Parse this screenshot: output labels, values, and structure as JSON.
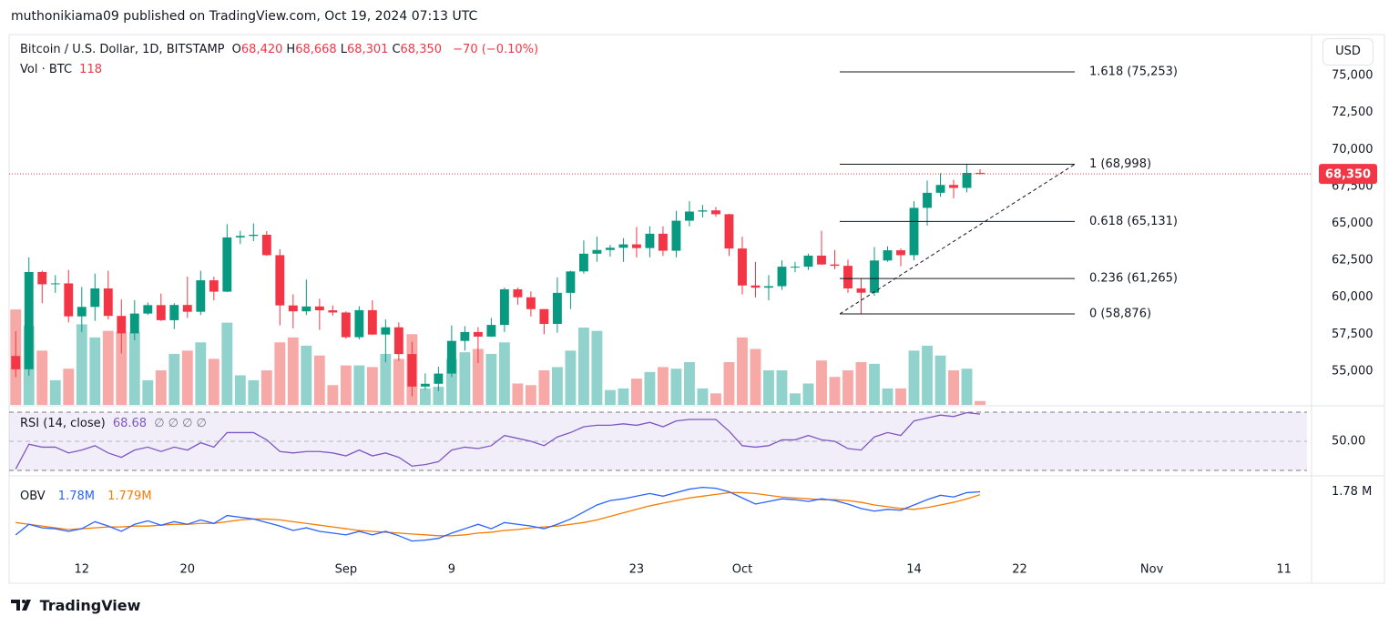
{
  "header": {
    "published": "muthonikiama09 published on TradingView.com, Oct 19, 2024 07:13 UTC"
  },
  "footer": {
    "brand": "TradingView"
  },
  "chart_data": {
    "type": "candlestick",
    "legend": {
      "symbol": "Bitcoin / U.S. Dollar, 1D, BITSTAMP",
      "ohlc_keys": [
        "O",
        "H",
        "L",
        "C"
      ],
      "ohlc_value_labels": [
        "68,420",
        "68,668",
        "68,301",
        "68,350"
      ],
      "change_label": "−70 (−0.10%)",
      "volume_name": "Vol · BTC",
      "volume_label": "118",
      "currency": "USD"
    },
    "x": [
      "2024-08-07",
      "2024-08-08",
      "2024-08-09",
      "2024-08-10",
      "2024-08-11",
      "2024-08-12",
      "2024-08-13",
      "2024-08-14",
      "2024-08-15",
      "2024-08-16",
      "2024-08-17",
      "2024-08-18",
      "2024-08-19",
      "2024-08-20",
      "2024-08-21",
      "2024-08-22",
      "2024-08-23",
      "2024-08-24",
      "2024-08-25",
      "2024-08-26",
      "2024-08-27",
      "2024-08-28",
      "2024-08-29",
      "2024-08-30",
      "2024-08-31",
      "2024-09-01",
      "2024-09-02",
      "2024-09-03",
      "2024-09-04",
      "2024-09-05",
      "2024-09-06",
      "2024-09-07",
      "2024-09-08",
      "2024-09-09",
      "2024-09-10",
      "2024-09-11",
      "2024-09-12",
      "2024-09-13",
      "2024-09-14",
      "2024-09-15",
      "2024-09-16",
      "2024-09-17",
      "2024-09-18",
      "2024-09-19",
      "2024-09-20",
      "2024-09-21",
      "2024-09-22",
      "2024-09-23",
      "2024-09-24",
      "2024-09-25",
      "2024-09-26",
      "2024-09-27",
      "2024-09-28",
      "2024-09-29",
      "2024-09-30",
      "2024-10-01",
      "2024-10-02",
      "2024-10-03",
      "2024-10-04",
      "2024-10-05",
      "2024-10-06",
      "2024-10-07",
      "2024-10-08",
      "2024-10-09",
      "2024-10-10",
      "2024-10-11",
      "2024-10-12",
      "2024-10-13",
      "2024-10-14",
      "2024-10-15",
      "2024-10-16",
      "2024-10-17",
      "2024-10-18",
      "2024-10-19"
    ],
    "open": [
      56030,
      55130,
      61710,
      60880,
      60940,
      58710,
      59350,
      60600,
      58740,
      57560,
      58900,
      59470,
      58450,
      59480,
      59020,
      61150,
      60380,
      64050,
      64150,
      64230,
      62850,
      59450,
      59050,
      59380,
      59120,
      58970,
      57300,
      59130,
      57480,
      57970,
      56160,
      53960,
      54150,
      54840,
      57050,
      57650,
      57340,
      58130,
      60540,
      60000,
      59200,
      58200,
      60300,
      61750,
      62950,
      63200,
      63350,
      63580,
      63330,
      64300,
      63150,
      65180,
      65800,
      65880,
      65620,
      63300,
      60800,
      60650,
      60750,
      62070,
      62070,
      62820,
      62220,
      62130,
      60600,
      60310,
      62490,
      63180,
      62850,
      66050,
      67070,
      67600,
      67400,
      68420
    ],
    "high": [
      57700,
      62700,
      61800,
      61500,
      61850,
      60700,
      61600,
      61800,
      59850,
      59800,
      59650,
      60250,
      59600,
      61400,
      61800,
      61400,
      64950,
      64500,
      65000,
      64480,
      63250,
      60200,
      61200,
      59900,
      59450,
      59050,
      59400,
      59800,
      58500,
      58300,
      56990,
      54850,
      55300,
      58100,
      58050,
      57980,
      58600,
      60650,
      60650,
      60400,
      59200,
      61350,
      61800,
      63850,
      64100,
      63550,
      64000,
      64750,
      64800,
      64800,
      65850,
      66500,
      66250,
      66100,
      65650,
      64100,
      62400,
      61500,
      62500,
      62400,
      62950,
      64500,
      63200,
      62550,
      61300,
      63400,
      63450,
      63300,
      66500,
      67900,
      68400,
      67950,
      68998,
      68668
    ],
    "low": [
      54600,
      54700,
      59600,
      60300,
      58300,
      57650,
      58400,
      58500,
      56200,
      57100,
      58800,
      58400,
      57850,
      58600,
      58800,
      59800,
      60350,
      63600,
      63800,
      62800,
      58100,
      57900,
      58800,
      57800,
      58760,
      57200,
      57150,
      57450,
      55600,
      55700,
      53300,
      53750,
      53650,
      54600,
      56400,
      55550,
      57320,
      57650,
      59500,
      58700,
      57500,
      57600,
      59200,
      61600,
      62400,
      62750,
      62400,
      62700,
      62700,
      62800,
      62700,
      64800,
      65400,
      65450,
      62800,
      60200,
      60000,
      59800,
      60500,
      61700,
      61850,
      62200,
      61900,
      60300,
      58876,
      60100,
      62400,
      62100,
      62500,
      64850,
      66800,
      66700,
      67100,
      68301
    ],
    "close": [
      55130,
      61710,
      60880,
      60940,
      58710,
      59350,
      60600,
      58740,
      57560,
      58900,
      59470,
      58450,
      59480,
      59020,
      61150,
      60380,
      64050,
      64150,
      64230,
      62850,
      59450,
      59050,
      59380,
      59120,
      58970,
      57300,
      59130,
      57480,
      57970,
      56160,
      53960,
      54150,
      54840,
      57050,
      57650,
      57340,
      58130,
      60540,
      60000,
      59200,
      58200,
      60300,
      61750,
      62950,
      63200,
      63350,
      63580,
      63330,
      64300,
      63150,
      65180,
      65800,
      65880,
      65620,
      63300,
      60800,
      60650,
      60750,
      62070,
      62070,
      62820,
      62220,
      62130,
      60600,
      60310,
      62490,
      63180,
      62850,
      66050,
      67070,
      67600,
      67400,
      68420,
      68350
    ],
    "last_close_label": "68,350",
    "volume": [
      2900,
      2400,
      1650,
      750,
      1100,
      2450,
      2050,
      2250,
      2200,
      2200,
      750,
      1050,
      1550,
      1650,
      1900,
      1400,
      2500,
      900,
      750,
      1050,
      1900,
      2050,
      1800,
      1500,
      600,
      1200,
      1200,
      1150,
      1550,
      1400,
      2150,
      500,
      550,
      1400,
      1600,
      1700,
      1550,
      1900,
      650,
      600,
      1050,
      1150,
      1650,
      2350,
      2250,
      450,
      500,
      800,
      1000,
      1150,
      1100,
      1300,
      500,
      350,
      1300,
      2050,
      1700,
      1050,
      1050,
      350,
      650,
      1350,
      850,
      1050,
      1300,
      1250,
      500,
      500,
      1650,
      1800,
      1500,
      1050,
      1100,
      118
    ],
    "volume_ylim": [
      0,
      11200
    ],
    "up_color": "#089981",
    "down_color": "#f23645",
    "volume_up_color": "#92d2cc",
    "volume_down_color": "#f7a9a7",
    "xlim": [
      "2024-08-06T12:00:00Z",
      "2024-11-12T18:00:00Z"
    ],
    "xticks": [
      {
        "value": "2024-08-12",
        "label": "12"
      },
      {
        "value": "2024-08-20",
        "label": "20"
      },
      {
        "value": "2024-09-01",
        "label": "Sep"
      },
      {
        "value": "2024-09-09",
        "label": "9"
      },
      {
        "value": "2024-09-23",
        "label": "23"
      },
      {
        "value": "2024-10-01",
        "label": "Oct"
      },
      {
        "value": "2024-10-14",
        "label": "14"
      },
      {
        "value": "2024-10-22",
        "label": "22"
      },
      {
        "value": "2024-11-01",
        "label": "Nov"
      },
      {
        "value": "2024-11-11",
        "label": "11"
      }
    ],
    "ylim": [
      52720,
      77650
    ],
    "yticks": [
      {
        "value": 55000,
        "label": "55,000"
      },
      {
        "value": 57500,
        "label": "57,500"
      },
      {
        "value": 60000,
        "label": "60,000"
      },
      {
        "value": 62500,
        "label": "62,500"
      },
      {
        "value": 65000,
        "label": "65,000"
      },
      {
        "value": 67500,
        "label": "67,500"
      },
      {
        "value": 70000,
        "label": "70,000"
      },
      {
        "value": 72500,
        "label": "72,500"
      },
      {
        "value": 75000,
        "label": "75,000"
      }
    ],
    "fib": {
      "values": [
        75253,
        68998,
        65131,
        61265,
        58876
      ],
      "value_labels": [
        "1.618 (75,253)",
        "1 (68,998)",
        "0.618 (65,131)",
        "0.236 (61,265)",
        "0 (58,876)"
      ]
    },
    "rsi": {
      "name": "RSI (14, close)",
      "value_label": "68.68",
      "extra": "∅ ∅ ∅ ∅",
      "color": "#7e57c2",
      "band": [
        30,
        70
      ],
      "ylim": [
        26.9,
        73.75
      ],
      "yticks": [
        {
          "value": 50,
          "label": "50.00"
        }
      ],
      "values": [
        31,
        48,
        46,
        46,
        42,
        44,
        47,
        42,
        39,
        44,
        46,
        43,
        46,
        44,
        49,
        46,
        56,
        56,
        56,
        51,
        43,
        42,
        43,
        43,
        42,
        40,
        44,
        40,
        42,
        39,
        33,
        34,
        36,
        44,
        46,
        45,
        47,
        54,
        52,
        50,
        47,
        53,
        56,
        60,
        61,
        61,
        62,
        61,
        63,
        60,
        64,
        65,
        65,
        65,
        57,
        47,
        46,
        47,
        51,
        51,
        54,
        51,
        50,
        45,
        44,
        53,
        56,
        54,
        64,
        66,
        68,
        67,
        69.7,
        68.68
      ]
    },
    "obv": {
      "name": "OBV",
      "value_label": "1.78M",
      "ma_label": "1.779M",
      "color": "#2962ff",
      "ma_color": "#f57c00",
      "ylim": [
        1757800,
        1784800
      ],
      "yticks": [
        {
          "value": 1780000,
          "label": "1.78 M"
        }
      ],
      "values": [
        1765300,
        1768900,
        1767700,
        1767400,
        1766500,
        1767400,
        1769800,
        1768300,
        1766500,
        1768900,
        1770100,
        1768600,
        1769800,
        1768900,
        1770400,
        1769200,
        1771900,
        1771300,
        1770700,
        1769500,
        1768300,
        1766800,
        1767700,
        1766500,
        1765900,
        1765300,
        1766500,
        1765300,
        1766500,
        1765000,
        1763200,
        1763500,
        1764100,
        1765900,
        1767400,
        1768900,
        1767400,
        1769500,
        1768900,
        1768300,
        1767400,
        1768900,
        1770700,
        1773100,
        1775500,
        1777000,
        1777600,
        1778500,
        1779400,
        1778500,
        1779700,
        1780900,
        1781500,
        1781200,
        1780000,
        1777900,
        1775800,
        1776700,
        1777600,
        1777300,
        1776700,
        1777600,
        1777000,
        1775800,
        1774300,
        1773400,
        1774000,
        1773700,
        1775500,
        1777300,
        1778800,
        1778200,
        1779700,
        1780000
      ],
      "ma": [
        1769500,
        1768900,
        1768300,
        1767700,
        1767100,
        1767400,
        1767700,
        1768000,
        1768000,
        1768300,
        1768300,
        1768600,
        1768900,
        1768900,
        1769200,
        1769200,
        1769800,
        1770400,
        1770700,
        1770700,
        1770400,
        1769800,
        1769200,
        1768600,
        1768000,
        1767400,
        1766800,
        1766500,
        1766200,
        1765900,
        1765600,
        1765300,
        1765000,
        1765000,
        1765300,
        1765900,
        1766200,
        1766800,
        1767100,
        1767700,
        1768000,
        1768300,
        1768900,
        1769500,
        1770400,
        1771600,
        1772800,
        1774000,
        1775200,
        1776100,
        1777000,
        1777900,
        1778500,
        1779100,
        1779700,
        1779700,
        1779400,
        1778800,
        1778200,
        1777900,
        1777600,
        1777300,
        1777300,
        1777000,
        1776400,
        1775500,
        1774900,
        1774300,
        1774000,
        1774600,
        1775500,
        1776400,
        1777600,
        1779000
      ]
    }
  }
}
